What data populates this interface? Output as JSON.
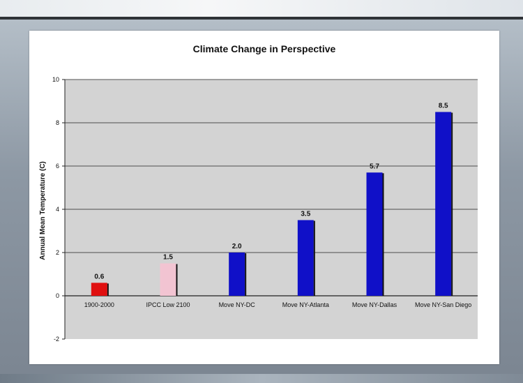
{
  "chart_data": {
    "type": "bar",
    "title": "Climate Change in Perspective",
    "ylabel": "Annual Mean Temperature (C)",
    "xlabel": "",
    "ylim": [
      -2,
      10
    ],
    "yticks": [
      -2,
      0,
      2,
      4,
      6,
      8,
      10
    ],
    "grid": true,
    "legend": "none",
    "categories": [
      "1900-2000",
      "IPCC Low 2100",
      "Move NY-DC",
      "Move NY-Atlanta",
      "Move NY-Dallas",
      "Move NY-San Diego"
    ],
    "values": [
      0.6,
      1.5,
      2.0,
      3.5,
      5.7,
      8.5
    ],
    "value_labels": [
      "0.6",
      "1.5",
      "2.0",
      "3.5",
      "5.7",
      "8.5"
    ],
    "colors": [
      "#e01010",
      "#f2c4d2",
      "#1010c8",
      "#1010c8",
      "#1010c8",
      "#1010c8"
    ],
    "plot_background": "#d3d3d3"
  }
}
